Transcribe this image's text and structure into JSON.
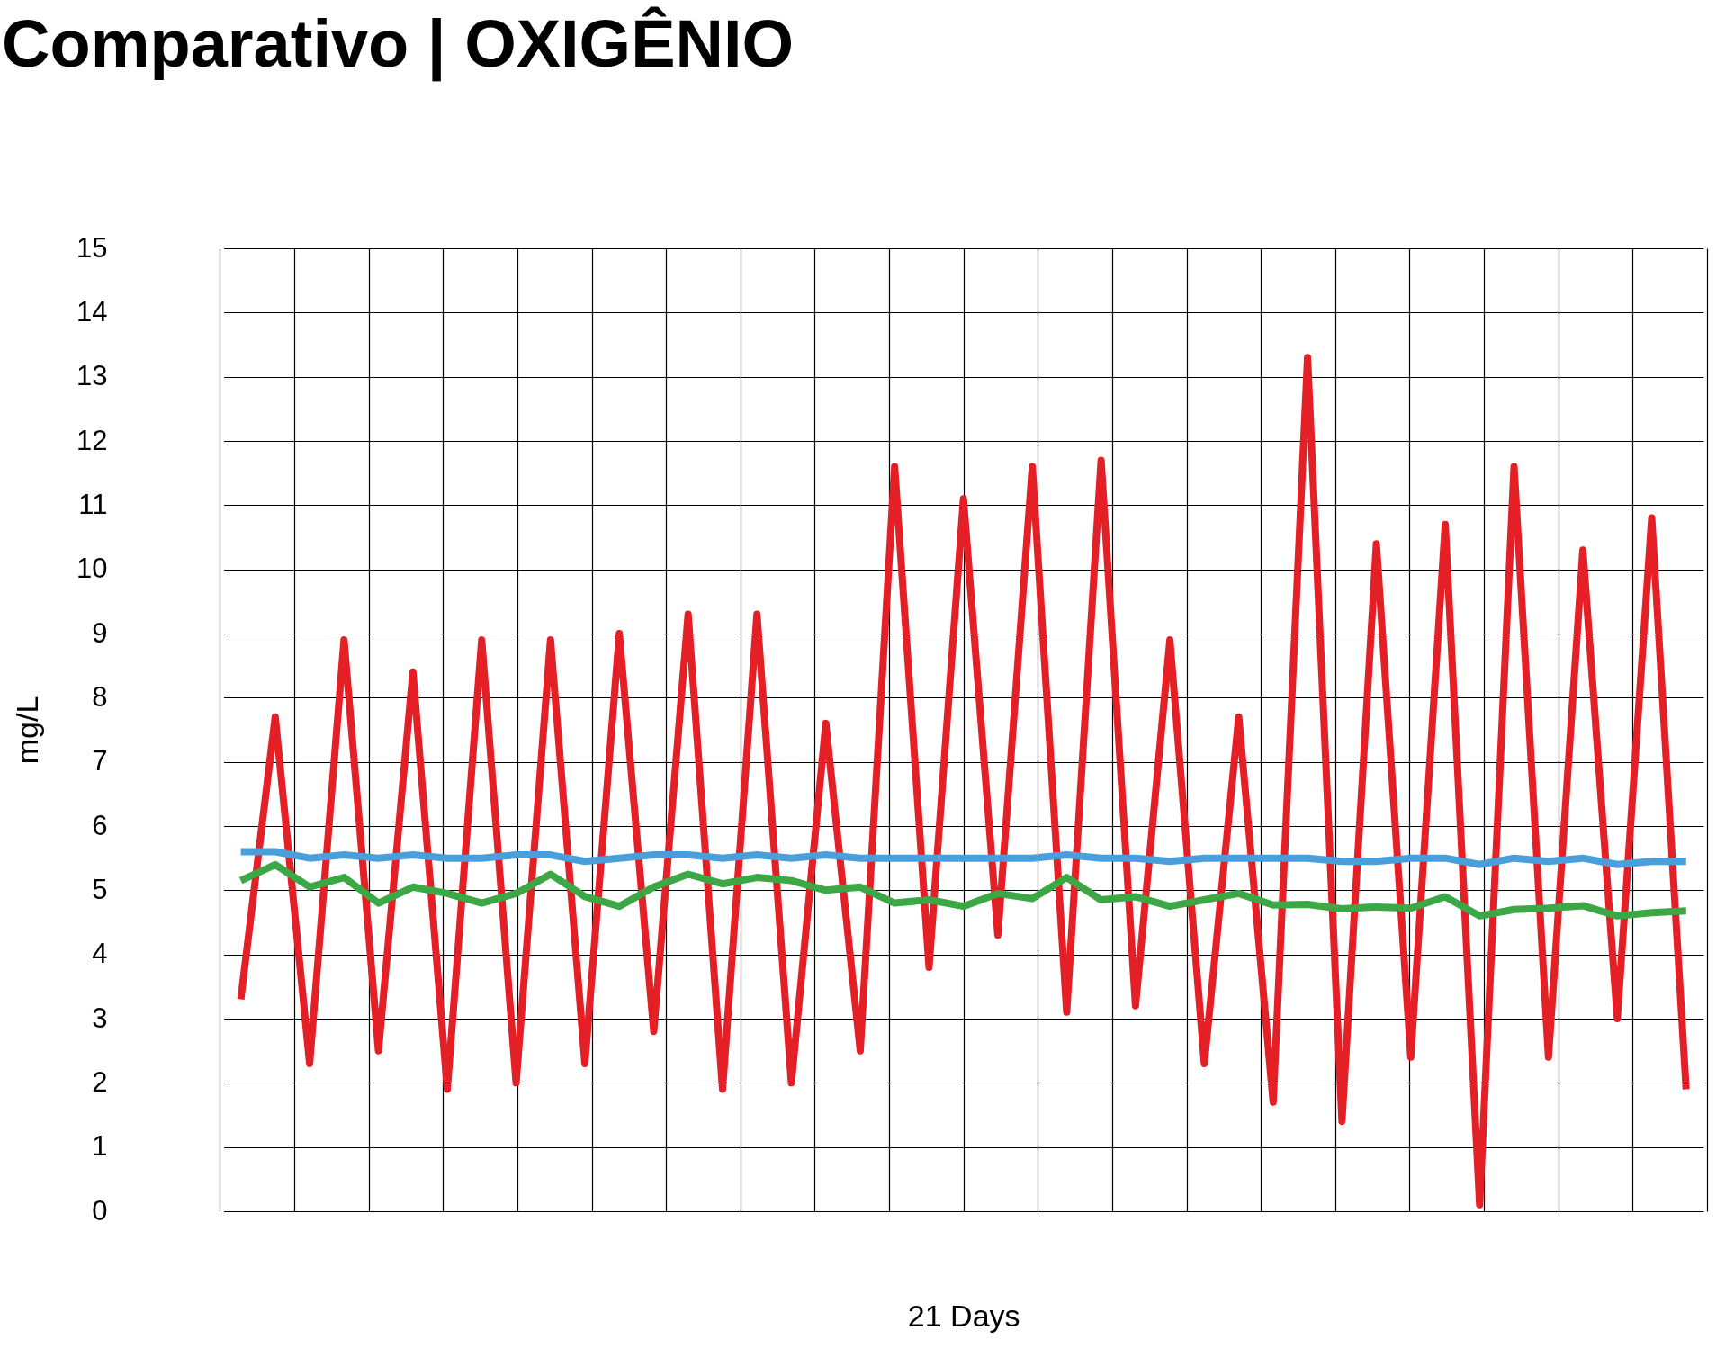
{
  "chart_data": {
    "type": "line",
    "title": "Comparativo | OXIGÊNIO",
    "xlabel": "21 Days",
    "ylabel": "mg/L",
    "categories": [
      null,
      null,
      null,
      null,
      null,
      null,
      null,
      null,
      null,
      null,
      null,
      null,
      null,
      null,
      null,
      null,
      null,
      null,
      null,
      null,
      null,
      null,
      null,
      null,
      null,
      null,
      null,
      null,
      null,
      null,
      null,
      null,
      null,
      null,
      null,
      null,
      null,
      null,
      null,
      null,
      null,
      null,
      null
    ],
    "ylim": [
      0,
      15
    ],
    "yticks": [
      0,
      1,
      2,
      3,
      4,
      5,
      6,
      7,
      8,
      9,
      10,
      11,
      12,
      13,
      14,
      15
    ],
    "grid": true,
    "line_style": "solid",
    "series": [
      {
        "color": "#e41f26",
        "values": [
          3.3,
          7.7,
          2.3,
          8.9,
          2.5,
          8.4,
          1.9,
          8.9,
          2.0,
          8.9,
          2.3,
          9.0,
          2.8,
          9.3,
          1.9,
          9.3,
          2.0,
          7.6,
          2.5,
          11.6,
          3.8,
          11.1,
          4.3,
          11.6,
          3.1,
          11.7,
          3.2,
          8.9,
          2.3,
          7.7,
          1.7,
          13.3,
          1.4,
          10.4,
          2.4,
          10.7,
          0.1,
          11.6,
          2.4,
          10.3,
          3.0,
          10.8,
          1.9
        ]
      },
      {
        "color": "#4a9fdb",
        "values": [
          5.6,
          5.6,
          5.5,
          5.55,
          5.5,
          5.55,
          5.5,
          5.5,
          5.55,
          5.55,
          5.45,
          5.5,
          5.55,
          5.55,
          5.5,
          5.55,
          5.5,
          5.55,
          5.5,
          5.5,
          5.5,
          5.5,
          5.5,
          5.5,
          5.55,
          5.5,
          5.5,
          5.45,
          5.5,
          5.5,
          5.5,
          5.5,
          5.45,
          5.45,
          5.5,
          5.5,
          5.4,
          5.5,
          5.45,
          5.5,
          5.4,
          5.45,
          5.45
        ]
      },
      {
        "color": "#3ca845",
        "values": [
          5.15,
          5.4,
          5.05,
          5.2,
          4.8,
          5.05,
          4.95,
          4.8,
          4.95,
          5.25,
          4.9,
          4.75,
          5.05,
          5.25,
          5.1,
          5.2,
          5.15,
          5.0,
          5.05,
          4.8,
          4.85,
          4.75,
          4.95,
          4.87,
          5.2,
          4.85,
          4.9,
          4.75,
          4.85,
          4.95,
          4.77,
          4.78,
          4.71,
          4.74,
          4.72,
          4.9,
          4.6,
          4.7,
          4.72,
          4.76,
          4.6,
          4.65,
          4.68
        ]
      }
    ]
  }
}
